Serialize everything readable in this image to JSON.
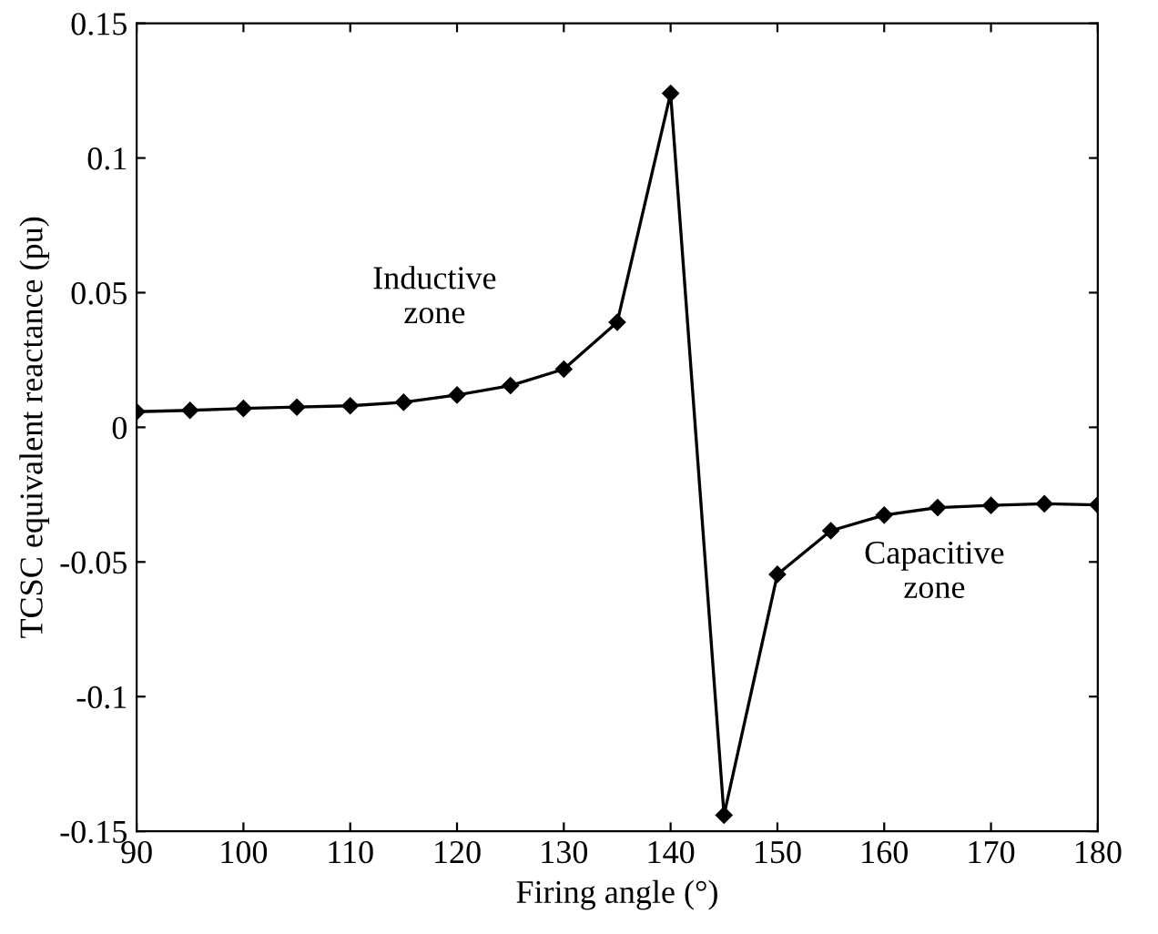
{
  "chart_data": {
    "type": "line",
    "xlabel": "Firing angle (°)",
    "ylabel": "TCSC equivalent reactance (pu)",
    "series": [
      {
        "color": "#000000",
        "x": [
          90,
          95,
          100,
          105,
          110,
          115,
          120,
          125,
          130,
          135,
          140,
          145,
          150,
          155,
          160,
          165,
          170,
          175,
          180
        ],
        "values": [
          0.0058,
          0.0063,
          0.007,
          0.0075,
          0.008,
          0.0093,
          0.012,
          0.0155,
          0.0216,
          0.039,
          0.124,
          -0.144,
          -0.0546,
          -0.0384,
          -0.0326,
          -0.0298,
          -0.029,
          -0.0284,
          -0.0288
        ],
        "marker": "diamond"
      }
    ],
    "annotations": [
      "Inductive\nzone",
      "Capacitive\nzone"
    ],
    "xlim": [
      90,
      180
    ],
    "xticks": [
      90,
      100,
      110,
      120,
      130,
      140,
      150,
      160,
      170,
      180
    ],
    "ylim": [
      -0.15,
      0.15
    ],
    "yticks": [
      {
        "value": -0.15,
        "label": "-0.15"
      },
      {
        "value": -0.1,
        "label": "-0.1"
      },
      {
        "value": -0.05,
        "label": "-0.05"
      },
      0,
      0.05,
      0.1,
      0.15
    ],
    "grid": false
  }
}
